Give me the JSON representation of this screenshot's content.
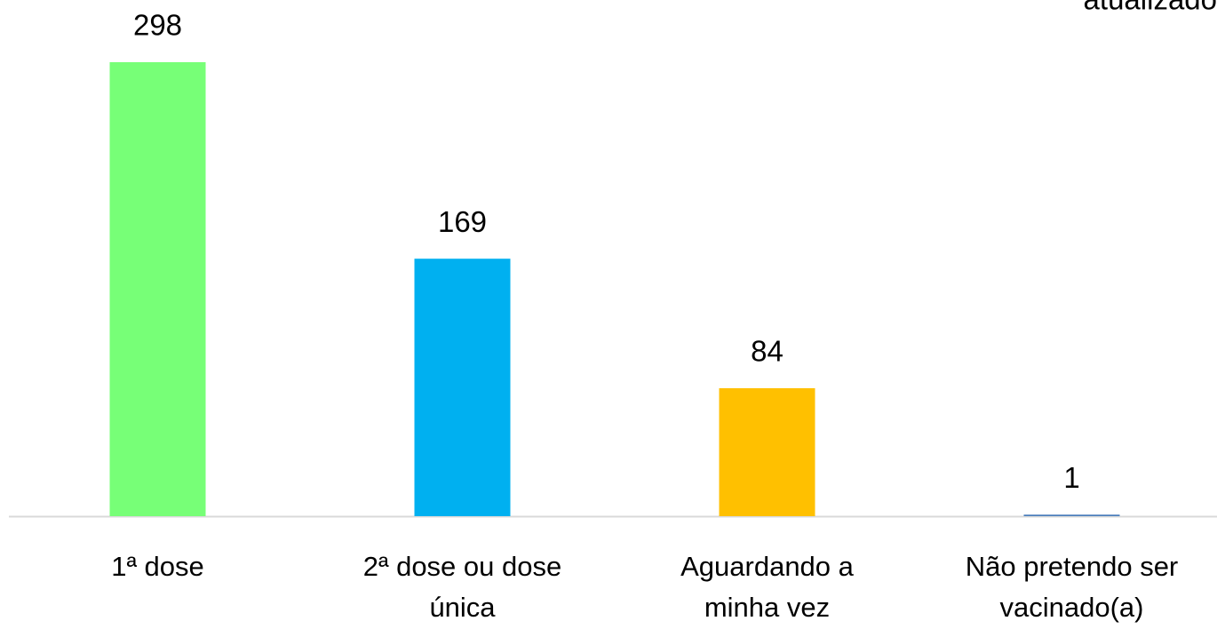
{
  "chart_data": {
    "type": "bar",
    "annotation": "atualizado",
    "categories": [
      "1ª dose",
      "2ª dose ou dose única",
      "Aguardando a minha vez",
      "Não pretendo ser vacinado(a)"
    ],
    "values": [
      298,
      169,
      84,
      1
    ],
    "colors": [
      "#77ff77",
      "#00b0f0",
      "#ffc000",
      "#4a7ebb"
    ]
  }
}
